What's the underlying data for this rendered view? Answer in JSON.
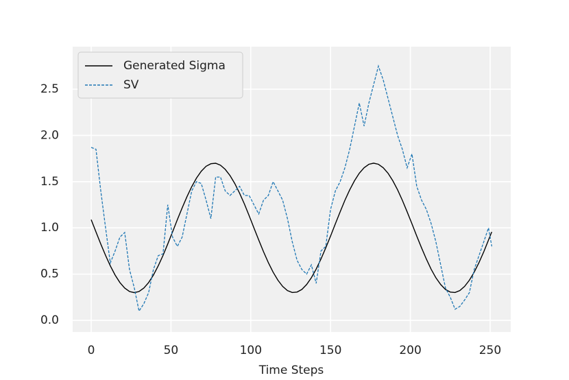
{
  "chart_data": {
    "type": "line",
    "xlabel": "Time Steps",
    "xlim": [
      -11.6,
      262.9
    ],
    "ylim": [
      -0.126,
      2.96
    ],
    "xticks": [
      0,
      50,
      100,
      150,
      200,
      250
    ],
    "yticks": [
      {
        "value": 0,
        "label": "0.0"
      },
      {
        "value": 0.5,
        "label": "0.5"
      },
      {
        "value": 1,
        "label": "1.0"
      },
      {
        "value": 1.5,
        "label": "1.5"
      },
      {
        "value": 2,
        "label": "2.0"
      },
      {
        "value": 2.5,
        "label": "2.5"
      }
    ],
    "grid": true,
    "legend": "upper left",
    "x": [
      0,
      3,
      6,
      9,
      12,
      15,
      18,
      21,
      24,
      27,
      30,
      33,
      36,
      39,
      42,
      45,
      48,
      51,
      54,
      57,
      60,
      63,
      66,
      69,
      72,
      75,
      78,
      81,
      84,
      87,
      90,
      93,
      96,
      99,
      102,
      105,
      108,
      111,
      114,
      117,
      120,
      123,
      126,
      129,
      132,
      135,
      138,
      141,
      144,
      147,
      150,
      153,
      156,
      159,
      162,
      165,
      168,
      171,
      174,
      177,
      180,
      183,
      186,
      189,
      192,
      195,
      198,
      201,
      204,
      207,
      210,
      213,
      216,
      219,
      222,
      225,
      228,
      231,
      234,
      237,
      240,
      243,
      246,
      249,
      251
    ],
    "series": [
      {
        "name": "Generated Sigma",
        "color": "#000000",
        "dash": false,
        "values": [
          1.088,
          0.956,
          0.826,
          0.702,
          0.589,
          0.49,
          0.409,
          0.349,
          0.312,
          0.3,
          0.312,
          0.349,
          0.409,
          0.49,
          0.589,
          0.702,
          0.826,
          0.956,
          1.088,
          1.216,
          1.337,
          1.446,
          1.539,
          1.613,
          1.666,
          1.694,
          1.699,
          1.678,
          1.633,
          1.566,
          1.479,
          1.375,
          1.258,
          1.131,
          1.0,
          0.869,
          0.742,
          0.625,
          0.521,
          0.434,
          0.367,
          0.322,
          0.301,
          0.306,
          0.334,
          0.387,
          0.461,
          0.554,
          0.663,
          0.784,
          0.912,
          1.044,
          1.174,
          1.298,
          1.411,
          1.51,
          1.591,
          1.651,
          1.688,
          1.7,
          1.688,
          1.651,
          1.591,
          1.51,
          1.411,
          1.298,
          1.174,
          1.044,
          0.912,
          0.784,
          0.663,
          0.554,
          0.461,
          0.387,
          0.334,
          0.306,
          0.301,
          0.322,
          0.367,
          0.434,
          0.521,
          0.625,
          0.742,
          0.869,
          0.956
        ]
      },
      {
        "name": "SV",
        "color": "#1f77b4",
        "dash": true,
        "values": [
          1.87,
          1.85,
          1.4,
          1.0,
          0.62,
          0.75,
          0.9,
          0.95,
          0.55,
          0.35,
          0.1,
          0.18,
          0.3,
          0.55,
          0.7,
          0.72,
          1.25,
          0.9,
          0.8,
          0.9,
          1.15,
          1.4,
          1.5,
          1.48,
          1.3,
          1.1,
          1.55,
          1.55,
          1.4,
          1.35,
          1.4,
          1.45,
          1.35,
          1.35,
          1.25,
          1.15,
          1.3,
          1.35,
          1.5,
          1.4,
          1.3,
          1.1,
          0.85,
          0.65,
          0.55,
          0.5,
          0.6,
          0.4,
          0.75,
          0.8,
          1.2,
          1.4,
          1.5,
          1.65,
          1.85,
          2.1,
          2.35,
          2.1,
          2.35,
          2.55,
          2.75,
          2.6,
          2.4,
          2.2,
          2.0,
          1.85,
          1.65,
          1.8,
          1.45,
          1.3,
          1.2,
          1.05,
          0.85,
          0.6,
          0.35,
          0.25,
          0.12,
          0.15,
          0.22,
          0.3,
          0.55,
          0.7,
          0.85,
          1.0,
          0.8
        ]
      }
    ]
  }
}
